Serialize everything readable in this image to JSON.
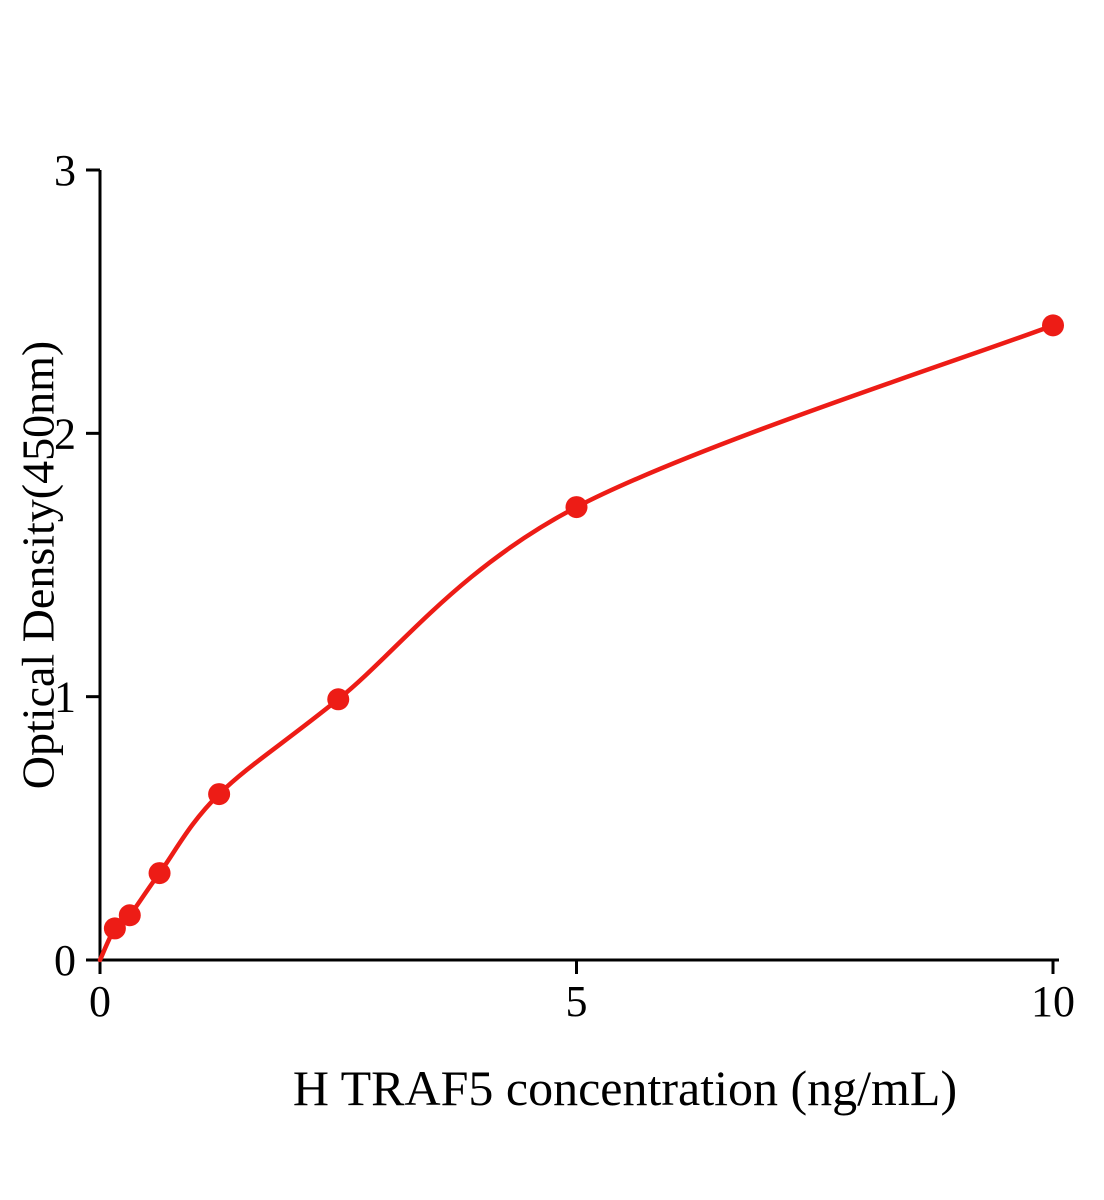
{
  "chart_data": {
    "type": "scatter",
    "title": "",
    "xlabel": "H TRAF5 concentration (ng/mL)",
    "ylabel": "Optical Density(450nm)",
    "x": [
      0.156,
      0.3125,
      0.625,
      1.25,
      2.5,
      5,
      10
    ],
    "y": [
      0.12,
      0.17,
      0.33,
      0.63,
      0.99,
      1.72,
      2.41
    ],
    "curve_start": {
      "x": 0,
      "y": 0
    },
    "xlim": [
      0,
      10
    ],
    "ylim": [
      0,
      3
    ],
    "xticks": [
      0,
      5,
      10
    ],
    "yticks": [
      0,
      1,
      2,
      3
    ],
    "line_color": "#ed1c16",
    "point_color": "#ed1c16",
    "axis_color": "#000000",
    "grid": false,
    "legend_position": "none"
  }
}
